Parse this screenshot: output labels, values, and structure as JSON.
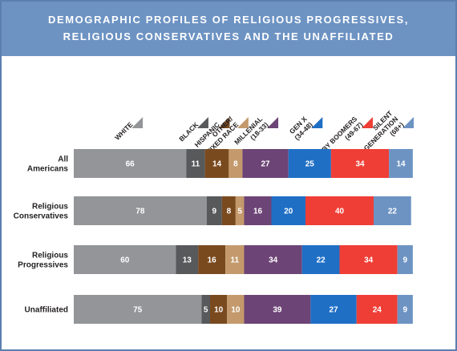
{
  "title_line1": "DEMOGRAPHIC PROFILES OF RELIGIOUS PROGRESSIVES,",
  "title_line2": "RELIGIOUS CONSERVATIVES AND THE UNAFFILIATED",
  "colors": {
    "banner": "#6d93c3",
    "white": "#939598",
    "black": "#58595b",
    "hispanic": "#7a4a1f",
    "other": "#c49a6c",
    "millenial": "#6d4476",
    "genx": "#1f6fc5",
    "boomers": "#ef3e36",
    "silent": "#6d93c3"
  },
  "chart_data": {
    "type": "bar",
    "orientation": "horizontal",
    "stacked": true,
    "categories": [
      "All Americans",
      "Religious Conservatives",
      "Religious Progressives",
      "Unaffiliated"
    ],
    "category_lines": [
      [
        "All",
        "Americans"
      ],
      [
        "Religious",
        "Conservatives"
      ],
      [
        "Religious",
        "Progressives"
      ],
      [
        "Unaffiliated"
      ]
    ],
    "series": [
      {
        "name": "WHITE",
        "label_lines": [
          "WHITE"
        ],
        "color_key": "white",
        "values": [
          66,
          78,
          60,
          75
        ]
      },
      {
        "name": "BLACK",
        "label_lines": [
          "BLACK"
        ],
        "color_key": "black",
        "values": [
          11,
          9,
          13,
          5
        ]
      },
      {
        "name": "HISPANIC",
        "label_lines": [
          "HISPANIC"
        ],
        "color_key": "hispanic",
        "values": [
          14,
          8,
          16,
          10
        ]
      },
      {
        "name": "OTHER/ MIXED RACE",
        "label_lines": [
          "OTHER/",
          "MIXED RACE"
        ],
        "color_key": "other",
        "values": [
          8,
          5,
          11,
          10
        ]
      },
      {
        "name": "MILLENIAL (18-33)",
        "label_lines": [
          "MILLENIAL",
          "(18-33)"
        ],
        "color_key": "millenial",
        "values": [
          27,
          16,
          34,
          39
        ]
      },
      {
        "name": "GEN X (34-48)",
        "label_lines": [
          "GEN X",
          "(34-48)"
        ],
        "color_key": "genx",
        "values": [
          25,
          20,
          22,
          27
        ]
      },
      {
        "name": "BABY BOOMERS (49-67)",
        "label_lines": [
          "BABY BOOMERS",
          "(49-67)"
        ],
        "color_key": "boomers",
        "values": [
          34,
          40,
          34,
          24
        ]
      },
      {
        "name": "SILENT GENERATION (68+)",
        "label_lines": [
          "SILENT",
          "GENERATION",
          "(68+)"
        ],
        "color_key": "silent",
        "values": [
          14,
          22,
          9,
          9
        ]
      }
    ]
  }
}
